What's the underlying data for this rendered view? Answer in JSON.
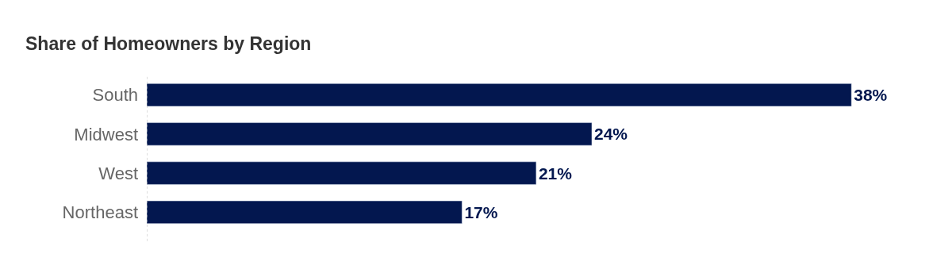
{
  "chart_data": {
    "type": "bar",
    "orientation": "horizontal",
    "title": "Share of Homeowners by Region",
    "categories": [
      "South",
      "Midwest",
      "West",
      "Northeast"
    ],
    "values": [
      38,
      24,
      21,
      17
    ],
    "value_labels": [
      "38%",
      "24%",
      "21%",
      "17%"
    ],
    "color": "#03174f",
    "tick_labels": "y"
  }
}
